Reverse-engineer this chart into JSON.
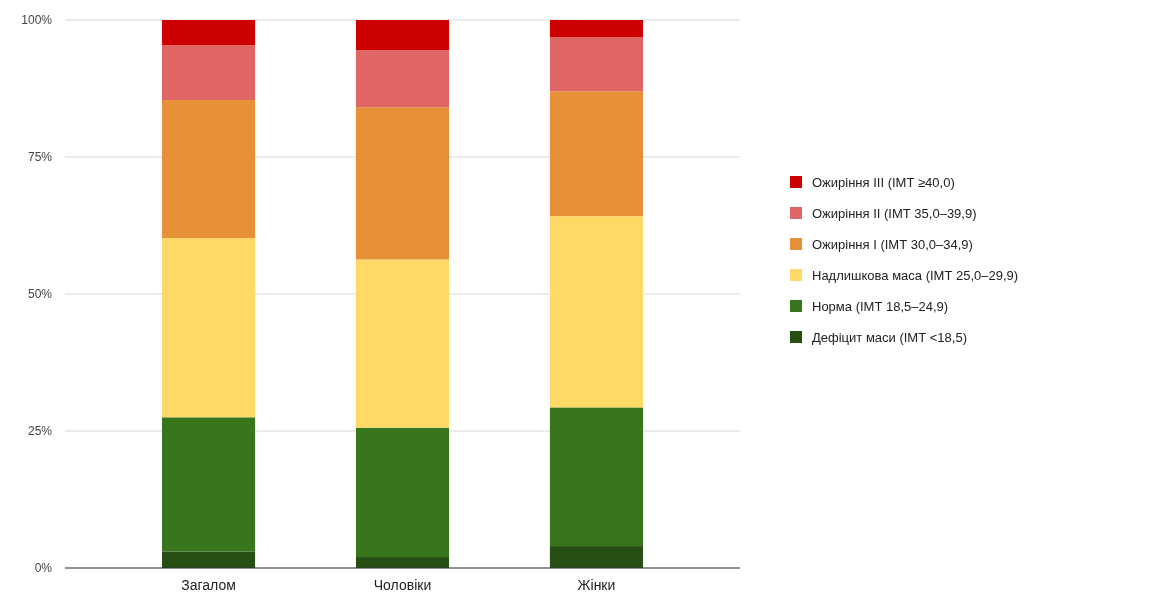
{
  "chart_data": {
    "type": "bar",
    "stacked": true,
    "categories": [
      "Загалом",
      "Чоловіки",
      "Жінки"
    ],
    "series": [
      {
        "name": "Дефіцит маси (ІМТ <18,5)",
        "color": "#274e13",
        "values": [
          3,
          2,
          4
        ]
      },
      {
        "name": "Норма (ІМТ 18,5–24,9)",
        "color": "#38761d",
        "values": [
          24.5,
          23.6,
          25.3
        ]
      },
      {
        "name": "Надлишкова маса (ІМТ 25,0–29,9)",
        "color": "#ffd966",
        "values": [
          32.7,
          30.7,
          34.9
        ]
      },
      {
        "name": "Ожиріння I (ІМТ 30,0–34,9)",
        "color": "#e69138",
        "values": [
          25.2,
          27.8,
          22.8
        ]
      },
      {
        "name": "Ожиріння II (ІМТ 35,0–39,9)",
        "color": "#e06666",
        "values": [
          10,
          10.4,
          9.9
        ]
      },
      {
        "name": "Ожиріння III (ІМТ ≥40,0)",
        "color": "#cc0000",
        "values": [
          4.6,
          5.5,
          3.1
        ]
      }
    ],
    "ylim": [
      0,
      100
    ],
    "yticks": [
      {
        "value": 0,
        "label": "0%"
      },
      {
        "value": 25,
        "label": "25%"
      },
      {
        "value": 50,
        "label": "50%"
      },
      {
        "value": 75,
        "label": "75%"
      },
      {
        "value": 100,
        "label": "100%"
      }
    ],
    "grid": "y",
    "legend": "right"
  }
}
